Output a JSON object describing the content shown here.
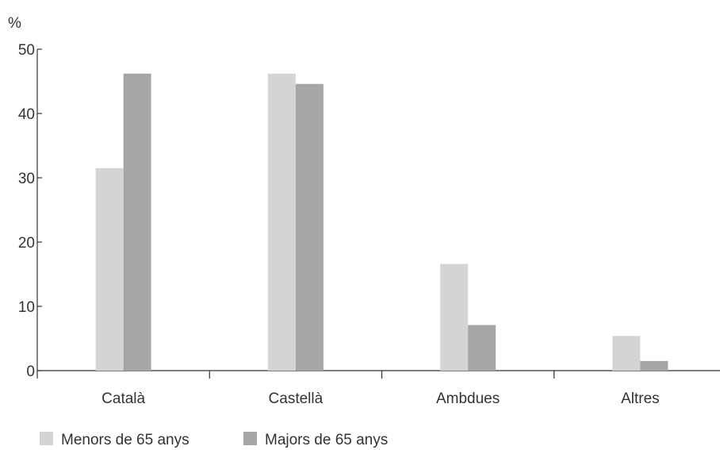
{
  "chart_data": {
    "type": "bar",
    "ylabel": "%",
    "ylim": [
      0,
      50
    ],
    "yticks": [
      "0",
      "10",
      "20",
      "30",
      "40",
      "50"
    ],
    "categories": [
      "Català",
      "Castellà",
      "Ambdues",
      "Altres"
    ],
    "series": [
      {
        "name": "Menors de 65 anys",
        "values": [
          31.5,
          46.2,
          16.6,
          5.4
        ],
        "color": "#d4d4d5"
      },
      {
        "name": "Majors de 65 anys",
        "values": [
          46.2,
          44.6,
          7.1,
          1.5
        ],
        "color": "#a6a6a8"
      }
    ],
    "grid": false,
    "legend_position": "bottom-left"
  }
}
